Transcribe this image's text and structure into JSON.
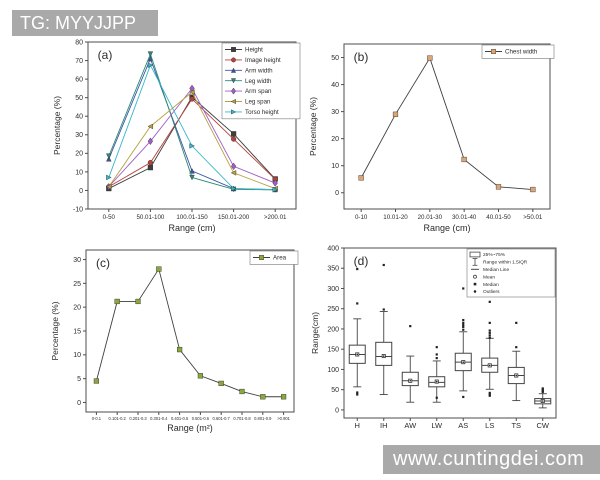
{
  "watermark_top": {
    "text": "TG: MYYJJPP",
    "bg": "#a9a9a9",
    "fg": "#ffffff"
  },
  "watermark_bottom": {
    "text": "www.cuntingdei.com",
    "bg": "#a9a9a9",
    "fg": "#ffffff"
  },
  "chart_data": [
    {
      "id": "a",
      "type": "line",
      "panel_label": "(a)",
      "xlabel": "Range (cm)",
      "ylabel": "Percentage (%)",
      "ylim": [
        -10,
        80
      ],
      "yticks": [
        -10,
        0,
        10,
        20,
        30,
        40,
        50,
        60,
        70,
        80
      ],
      "categories": [
        "0-50",
        "50.01-100",
        "100.01-150",
        "150.01-200",
        ">200.01"
      ],
      "legend_position": "top-right",
      "series": [
        {
          "name": "Height",
          "marker": "square",
          "color": "#3f3f3f",
          "values": [
            1,
            12.3,
            50.3,
            30.5,
            6.2
          ]
        },
        {
          "name": "Image height",
          "marker": "circle",
          "color": "#b5433d",
          "values": [
            2,
            15,
            49.3,
            27.7,
            6
          ]
        },
        {
          "name": "Arm width",
          "marker": "triangle-up",
          "color": "#3c55a5",
          "values": [
            17,
            71,
            10.5,
            1,
            0.5
          ]
        },
        {
          "name": "Leg width",
          "marker": "triangle-down",
          "color": "#2c8a78",
          "values": [
            18.5,
            73.5,
            7,
            0.6,
            0.3
          ]
        },
        {
          "name": "Arm span",
          "marker": "diamond",
          "color": "#a05cc8",
          "values": [
            2,
            26.5,
            55,
            13,
            4
          ]
        },
        {
          "name": "Leg span",
          "marker": "triangle-left",
          "color": "#b8a03c",
          "values": [
            2,
            34.5,
            53,
            9.5,
            1
          ]
        },
        {
          "name": "Torso height",
          "marker": "triangle-right",
          "color": "#35b7c9",
          "values": [
            7,
            67.5,
            24,
            1,
            0.4
          ]
        }
      ]
    },
    {
      "id": "b",
      "type": "line",
      "panel_label": "(b)",
      "xlabel": "Range (cm)",
      "ylabel": "Percentage (%)",
      "ylim": [
        -6,
        55
      ],
      "yticks": [
        0,
        10,
        20,
        30,
        40,
        50
      ],
      "categories": [
        "0-10",
        "10.01-20",
        "20.01-30",
        "30.01-40",
        "40.01-50",
        ">50.01"
      ],
      "legend_position": "top-right",
      "series": [
        {
          "name": "Chest width",
          "marker": "square",
          "color": "#dca573",
          "line_color": "#3f3f3f",
          "values": [
            5.5,
            29,
            49.8,
            12.3,
            2.2,
            1.2
          ]
        }
      ]
    },
    {
      "id": "c",
      "type": "line",
      "panel_label": "(c)",
      "xlabel": "Range (m²)",
      "ylabel": "Percentage (%)",
      "ylim": [
        -2,
        32
      ],
      "yticks": [
        0,
        5,
        10,
        15,
        20,
        25,
        30
      ],
      "categories": [
        "0-0.1",
        "0.101-0.2",
        "0.201-0.3",
        "0.301-0.4",
        "0.401-0.5",
        "0.501-0.6",
        "0.601-0.7",
        "0.701-0.8",
        "0.801-0.9",
        ">0.901"
      ],
      "legend_position": "top-right",
      "series": [
        {
          "name": "Area",
          "marker": "square",
          "color": "#8aa63c",
          "line_color": "#3f3f3f",
          "values": [
            4.5,
            21.2,
            21.2,
            28,
            11.1,
            5.6,
            4,
            2.3,
            1.2,
            1.2
          ]
        }
      ]
    },
    {
      "id": "d",
      "type": "box",
      "panel_label": "(d)",
      "xlabel": "",
      "ylabel": "Range(cm)",
      "ylim": [
        -20,
        400
      ],
      "yticks": [
        0,
        50,
        100,
        150,
        200,
        250,
        300,
        350,
        400
      ],
      "categories": [
        "H",
        "IH",
        "AW",
        "LW",
        "AS",
        "LS",
        "TS",
        "CW"
      ],
      "legend": [
        "25%~75%",
        "Range within 1.5IQR",
        "Median Line",
        "Mean",
        "Median",
        "Outliers"
      ],
      "boxes": [
        {
          "label": "H",
          "q1": 115,
          "q3": 160,
          "median": 137,
          "mean": 137,
          "whisker_low": 57,
          "whisker_high": 225,
          "outliers": [
            38,
            43,
            263,
            348
          ]
        },
        {
          "label": "IH",
          "q1": 110,
          "q3": 167,
          "median": 132,
          "mean": 133,
          "whisker_low": 38,
          "whisker_high": 243,
          "outliers": [
            248,
            358
          ]
        },
        {
          "label": "AW",
          "q1": 60,
          "q3": 93,
          "median": 72,
          "mean": 72,
          "whisker_low": 19,
          "whisker_high": 133,
          "outliers": [
            207
          ]
        },
        {
          "label": "LW",
          "q1": 57,
          "q3": 82,
          "median": 68,
          "mean": 70,
          "whisker_low": 19,
          "whisker_high": 121,
          "outliers": [
            30,
            128,
            137,
            155
          ]
        },
        {
          "label": "AS",
          "q1": 97,
          "q3": 140,
          "median": 118,
          "mean": 118,
          "whisker_low": 47,
          "whisker_high": 193,
          "outliers": [
            32,
            198,
            205,
            210,
            215,
            222,
            300
          ]
        },
        {
          "label": "LS",
          "q1": 93,
          "q3": 128,
          "median": 110,
          "mean": 110,
          "whisker_low": 51,
          "whisker_high": 177,
          "outliers": [
            35,
            38,
            42,
            178,
            184,
            190,
            196,
            215,
            267
          ]
        },
        {
          "label": "TS",
          "q1": 65,
          "q3": 105,
          "median": 85,
          "mean": 85,
          "whisker_low": 23,
          "whisker_high": 145,
          "outliers": [
            155,
            215
          ]
        },
        {
          "label": "CW",
          "q1": 15,
          "q3": 28,
          "median": 22,
          "mean": 22,
          "whisker_low": 5,
          "whisker_high": 40,
          "outliers": [
            44,
            47,
            50,
            53
          ]
        }
      ]
    }
  ]
}
